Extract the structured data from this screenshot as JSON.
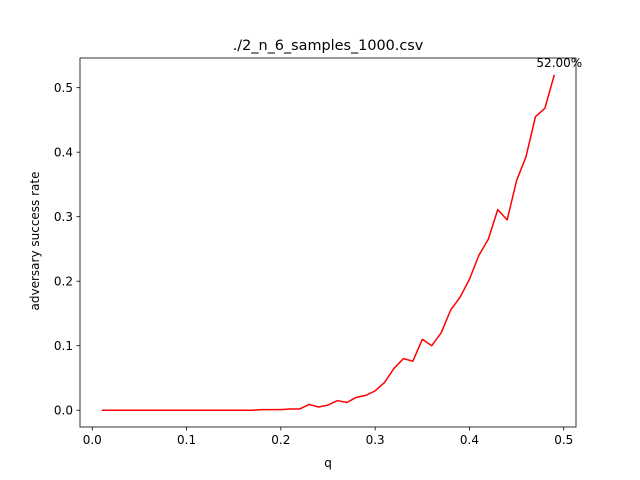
{
  "chart_data": {
    "type": "line",
    "title": "./2_n_6_samples_1000.csv",
    "xlabel": "q",
    "ylabel": "adversary success rate",
    "xlim": [
      -0.013,
      0.513
    ],
    "ylim": [
      -0.026,
      0.546
    ],
    "xticks": [
      0.0,
      0.1,
      0.2,
      0.3,
      0.4,
      0.5
    ],
    "xtick_labels": [
      "0.0",
      "0.1",
      "0.2",
      "0.3",
      "0.4",
      "0.5"
    ],
    "yticks": [
      0.0,
      0.1,
      0.2,
      0.3,
      0.4,
      0.5
    ],
    "ytick_labels": [
      "0.0",
      "0.1",
      "0.2",
      "0.3",
      "0.4",
      "0.5"
    ],
    "grid": false,
    "annotation": {
      "text": "52.00%",
      "x": 0.49,
      "y": 0.52
    },
    "series": [
      {
        "color": "#ff0000",
        "x": [
          0.01,
          0.02,
          0.03,
          0.04,
          0.05,
          0.06,
          0.07,
          0.08,
          0.09,
          0.1,
          0.11,
          0.12,
          0.13,
          0.14,
          0.15,
          0.16,
          0.17,
          0.18,
          0.19,
          0.2,
          0.21,
          0.22,
          0.23,
          0.24,
          0.25,
          0.26,
          0.27,
          0.28,
          0.29,
          0.3,
          0.31,
          0.32,
          0.33,
          0.34,
          0.35,
          0.36,
          0.37,
          0.38,
          0.39,
          0.4,
          0.41,
          0.42,
          0.43,
          0.44,
          0.45,
          0.46,
          0.47,
          0.48,
          0.49
        ],
        "y": [
          0,
          0,
          0,
          0,
          0,
          0,
          0,
          0,
          0,
          0,
          0,
          0,
          0,
          0,
          0,
          0,
          0,
          0.001,
          0.001,
          0.001,
          0.002,
          0.002,
          0.009,
          0.005,
          0.008,
          0.015,
          0.012,
          0.02,
          0.023,
          0.03,
          0.043,
          0.065,
          0.08,
          0.076,
          0.11,
          0.1,
          0.12,
          0.155,
          0.175,
          0.203,
          0.24,
          0.265,
          0.311,
          0.295,
          0.356,
          0.393,
          0.455,
          0.468,
          0.52
        ]
      }
    ]
  }
}
